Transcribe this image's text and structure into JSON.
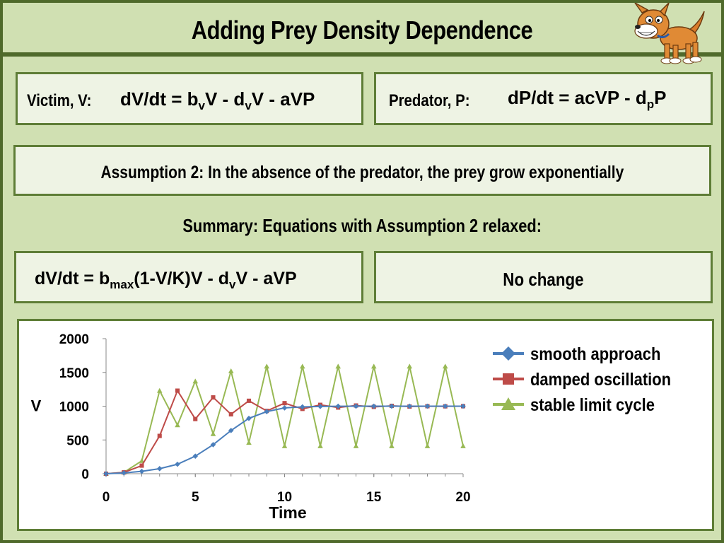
{
  "title": "Adding Prey Density Dependence",
  "victim": {
    "label": "Victim, V:",
    "eq": [
      "dV/dt = b",
      "v",
      "V - d",
      "v",
      "V - aVP"
    ]
  },
  "predator": {
    "label": "Predator, P:",
    "eq": [
      "dP/dt = acVP - d",
      "p",
      "P"
    ]
  },
  "assumption": "Assumption 2: In the absence of the predator, the prey grow exponentially",
  "summary": "Summary: Equations with Assumption 2 relaxed:",
  "relaxed_eq": [
    "dV/dt = b",
    "max",
    "(1-V/K)V - d",
    "v",
    "V - aVP"
  ],
  "no_change": "No change",
  "chart_data": {
    "type": "line",
    "title": "",
    "xlabel": "Time",
    "ylabel": "V",
    "xlim": [
      0,
      20
    ],
    "ylim": [
      0,
      2000
    ],
    "xticks": [
      0,
      5,
      10,
      15,
      20
    ],
    "yticks": [
      0,
      500,
      1000,
      1500,
      2000
    ],
    "grid": false,
    "legend_position": "top-right",
    "x": [
      0,
      1,
      2,
      3,
      4,
      5,
      6,
      7,
      8,
      9,
      10,
      11,
      12,
      13,
      14,
      15,
      16,
      17,
      18,
      19,
      20
    ],
    "series": [
      {
        "name": "smooth approach",
        "color": "#4a7ebb",
        "marker": "diamond",
        "values": [
          0,
          12,
          35,
          75,
          140,
          260,
          430,
          640,
          820,
          920,
          975,
          990,
          996,
          999,
          1000,
          1000,
          1000,
          1000,
          1000,
          1000,
          1000
        ]
      },
      {
        "name": "damped oscillation",
        "color": "#be4b48",
        "marker": "square",
        "values": [
          0,
          20,
          120,
          560,
          1230,
          810,
          1130,
          880,
          1080,
          930,
          1045,
          960,
          1020,
          980,
          1010,
          990,
          1005,
          995,
          1000,
          998,
          1000
        ]
      },
      {
        "name": "stable limit cycle",
        "color": "#98b954",
        "marker": "triangle",
        "values": [
          0,
          20,
          190,
          1230,
          720,
          1370,
          590,
          1520,
          460,
          1590,
          410,
          1590,
          410,
          1590,
          410,
          1590,
          410,
          1590,
          410,
          1590,
          410
        ]
      }
    ]
  }
}
